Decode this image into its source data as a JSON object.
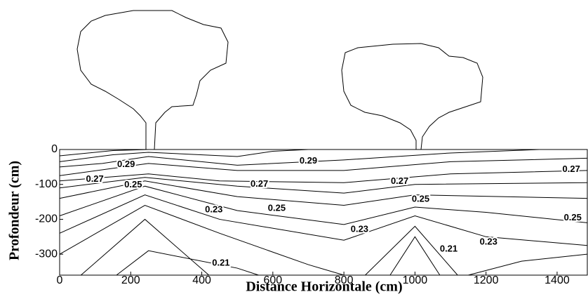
{
  "chart_data": {
    "type": "contour",
    "xlabel": "Distance Horizontale (cm)",
    "ylabel": "Profondeur  (cm)",
    "xlim": [
      0,
      1485
    ],
    "ylim": [
      -360,
      0
    ],
    "xticks": [
      0,
      200,
      400,
      600,
      800,
      1000,
      1200,
      1400
    ],
    "yticks": [
      0,
      -100,
      -200,
      -300
    ],
    "color": "#000000",
    "contours": [
      {
        "x": [
          0,
          150,
          250
        ],
        "y": [
          -18,
          -3,
          0
        ]
      },
      {
        "x": [
          0,
          150,
          250,
          500,
          600,
          700
        ],
        "y": [
          -35,
          -15,
          -8,
          -20,
          -5,
          0
        ]
      },
      {
        "x": [
          0,
          120,
          250,
          500,
          800,
          1100,
          1350
        ],
        "y": [
          -50,
          -40,
          -20,
          -45,
          -30,
          -10,
          0
        ]
      },
      {
        "x": [
          0,
          250,
          500,
          800,
          1100,
          1485
        ],
        "y": [
          -75,
          -40,
          -60,
          -60,
          -35,
          -25
        ]
      },
      {
        "x": [
          0,
          250,
          450,
          800,
          1100,
          1485
        ],
        "y": [
          -90,
          -70,
          -90,
          -95,
          -70,
          -60
        ]
      },
      {
        "x": [
          0,
          240,
          500,
          800,
          1000,
          1485
        ],
        "y": [
          -110,
          -80,
          -105,
          -125,
          -100,
          -95
        ]
      },
      {
        "x": [
          0,
          240,
          500,
          800,
          1000,
          1485
        ],
        "y": [
          -140,
          -90,
          -135,
          -160,
          -130,
          -140
        ]
      },
      {
        "x": [
          0,
          240,
          500,
          800,
          1000,
          1200,
          1485
        ],
        "y": [
          -190,
          -105,
          -175,
          -215,
          -165,
          -180,
          -210
        ]
      },
      {
        "x": [
          0,
          240,
          450,
          800,
          1000,
          1200,
          1485
        ],
        "y": [
          -240,
          -130,
          -200,
          -260,
          -190,
          -250,
          -275
        ]
      },
      {
        "x": [
          0,
          240,
          450,
          700,
          800
        ],
        "y": [
          -300,
          -160,
          -240,
          -330,
          -360
        ]
      },
      {
        "x": [
          860,
          1000,
          1120
        ],
        "y": [
          -360,
          -220,
          -360
        ]
      },
      {
        "x": [
          1150,
          1300,
          1485
        ],
        "y": [
          -360,
          -320,
          -300
        ]
      },
      {
        "x": [
          60,
          240,
          420
        ],
        "y": [
          -360,
          -200,
          -360
        ]
      },
      {
        "x": [
          160,
          250,
          500,
          560
        ],
        "y": [
          -360,
          -290,
          -340,
          -360
        ]
      },
      {
        "x": [
          930,
          1000,
          1070
        ],
        "y": [
          -360,
          -250,
          -360
        ]
      }
    ],
    "contour_labels": {
      "values": [
        0.29,
        0.29,
        0.27,
        0.27,
        0.27,
        0.27,
        0.25,
        0.25,
        0.25,
        0.25,
        0.23,
        0.23,
        0.23,
        0.21,
        0.21
      ],
      "x": [
        187,
        700,
        99,
        562,
        957,
        1440,
        207,
        611,
        1016,
        1444,
        434,
        844,
        1207,
        454,
        1095
      ],
      "y": [
        -43,
        -33,
        -86,
        -100,
        -92,
        -57,
        -102,
        -169,
        -143,
        -196,
        -173,
        -229,
        -266,
        -326,
        -286
      ]
    }
  }
}
